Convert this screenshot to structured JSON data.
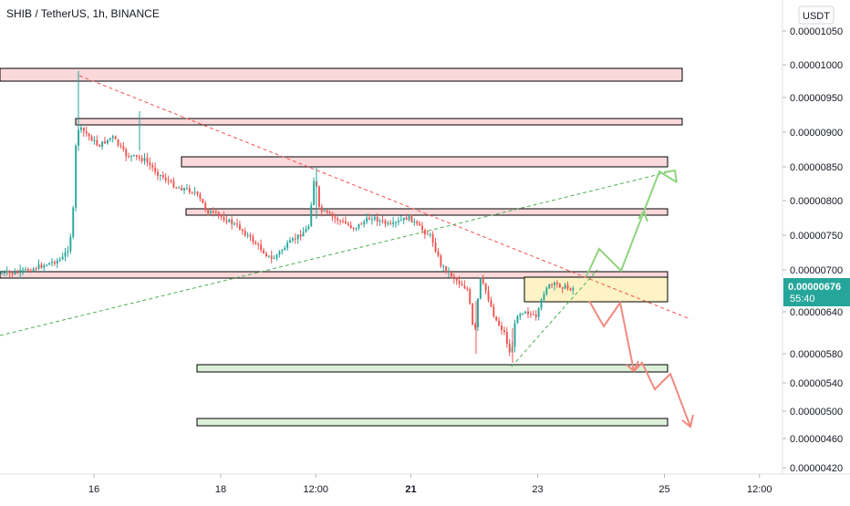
{
  "chart_data": {
    "type": "candlestick",
    "title": "SHIB / TetherUS, 1h, BINANCE",
    "currency_badge": "USDT",
    "price_ticks": [
      "0.00001050",
      "0.00001000",
      "0.00000950",
      "0.00000900",
      "0.00000850",
      "0.00000800",
      "0.00000750",
      "0.00000700",
      "0.00000640",
      "0.00000580",
      "0.00000540",
      "0.00000500",
      "0.00000460",
      "0.00000420"
    ],
    "time_ticks": [
      {
        "label": "16",
        "pos": 0.0
      },
      {
        "label": "18",
        "pos": 2.0
      },
      {
        "label": "12:00",
        "pos": 3.5
      },
      {
        "label": "21",
        "pos": 5.0
      },
      {
        "label": "23",
        "pos": 7.0
      },
      {
        "label": "25",
        "pos": 9.0
      },
      {
        "label": "12:00",
        "pos": 10.5
      }
    ],
    "current_price": {
      "value": "0.00000676",
      "countdown": "55:40"
    },
    "colors": {
      "up": "#26a69a",
      "down": "#ef5350",
      "resistance_fill": "#fbd9da",
      "support_fill": "#dcefd9",
      "range_fill": "#fdf3c4",
      "projection_up": "#8fd47e",
      "projection_down": "#f08a7f"
    }
  }
}
